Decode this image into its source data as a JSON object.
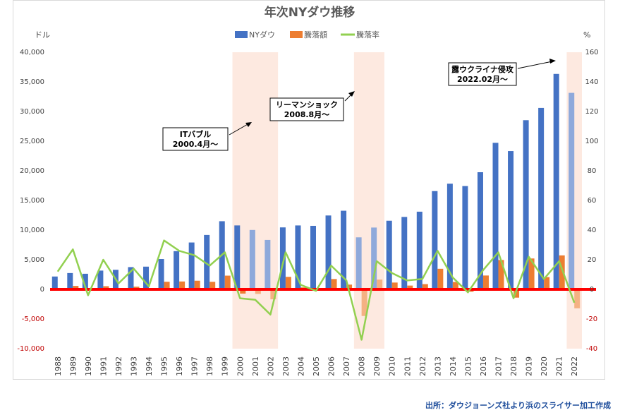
{
  "chart_data": {
    "type": "bar",
    "title": "年次NYダウ推移",
    "left_axis_unit": "ドル",
    "right_axis_unit": "%",
    "categories": [
      "1988",
      "1989",
      "1990",
      "1991",
      "1992",
      "1993",
      "1994",
      "1995",
      "1996",
      "1997",
      "1998",
      "1999",
      "2000",
      "2001",
      "2002",
      "2003",
      "2004",
      "2005",
      "2006",
      "2007",
      "2008",
      "2009",
      "2010",
      "2011",
      "2012",
      "2013",
      "2014",
      "2015",
      "2016",
      "2017",
      "2018",
      "2019",
      "2020",
      "2021",
      "2022"
    ],
    "left_ticks": [
      "40,000",
      "35,000",
      "30,000",
      "25,000",
      "20,000",
      "15,000",
      "10,000",
      "5,000",
      "0",
      "-5,000",
      "-10,000"
    ],
    "right_ticks": [
      "160",
      "140",
      "120",
      "100",
      "80",
      "60",
      "40",
      "20",
      "0",
      "-20",
      "-40"
    ],
    "ylim_left": [
      -10000,
      40000
    ],
    "ylim_right": [
      -40,
      160
    ],
    "series": [
      {
        "name": "NYダウ",
        "axis": "left",
        "kind": "bar",
        "color": "#4472c4",
        "values": [
          2169,
          2753,
          2634,
          3169,
          3301,
          3754,
          3834,
          5117,
          6448,
          7908,
          9181,
          11497,
          10787,
          10022,
          8342,
          10454,
          10783,
          10718,
          12463,
          13265,
          8776,
          10428,
          11578,
          12218,
          13104,
          16577,
          17823,
          17425,
          19763,
          24719,
          23327,
          28538,
          30606,
          36338,
          33147
        ]
      },
      {
        "name": "騰落額",
        "axis": "left",
        "kind": "bar",
        "color": "#ed7d31",
        "values": [
          229,
          584,
          -119,
          535,
          132,
          453,
          80,
          1283,
          1331,
          1460,
          1273,
          2316,
          -710,
          -765,
          -1680,
          2112,
          330,
          -61,
          1745,
          802,
          -4489,
          1652,
          1150,
          640,
          886,
          3473,
          1246,
          -398,
          2338,
          4956,
          -1392,
          5211,
          2068,
          5732,
          -3191
        ]
      },
      {
        "name": "騰落率",
        "axis": "right",
        "kind": "line",
        "color": "#92d050",
        "values": [
          12,
          27,
          -4,
          20,
          4,
          14,
          2,
          33,
          26,
          23,
          16,
          25,
          -6,
          -7,
          -17,
          25,
          3,
          -1,
          16,
          6,
          -34,
          19,
          11,
          6,
          7,
          26,
          8,
          -2,
          13,
          25,
          -6,
          22,
          7,
          19,
          -9
        ]
      }
    ],
    "shaded_periods": [
      {
        "from": "2000",
        "to": "2002"
      },
      {
        "from": "2008",
        "to": "2009"
      },
      {
        "from": "2022",
        "to": "2022"
      }
    ],
    "highlighted_years": [
      "2001",
      "2002",
      "2008",
      "2009",
      "2022"
    ],
    "annotations": [
      {
        "lines": [
          "ITバブル",
          "2000.4月～"
        ],
        "points_to": "2000"
      },
      {
        "lines": [
          "リーマンショック",
          "2008.8月～"
        ],
        "points_to": "2008"
      },
      {
        "lines": [
          "露ウクライナ侵攻",
          "2022.02月～"
        ],
        "points_to": "2022"
      }
    ],
    "legend_position": "top-center"
  },
  "source_note": "出所：ダウジョーンズ社より浜のスライサー加工作成",
  "colors": {
    "dow_bar": "#4472c4",
    "dow_bar_light": "#8ea9db",
    "change_bar": "#ed7d31",
    "change_bar_light": "#f4b183",
    "rate_line": "#92d050",
    "zero_line": "#ff0000",
    "shade": "#fde9e0"
  }
}
